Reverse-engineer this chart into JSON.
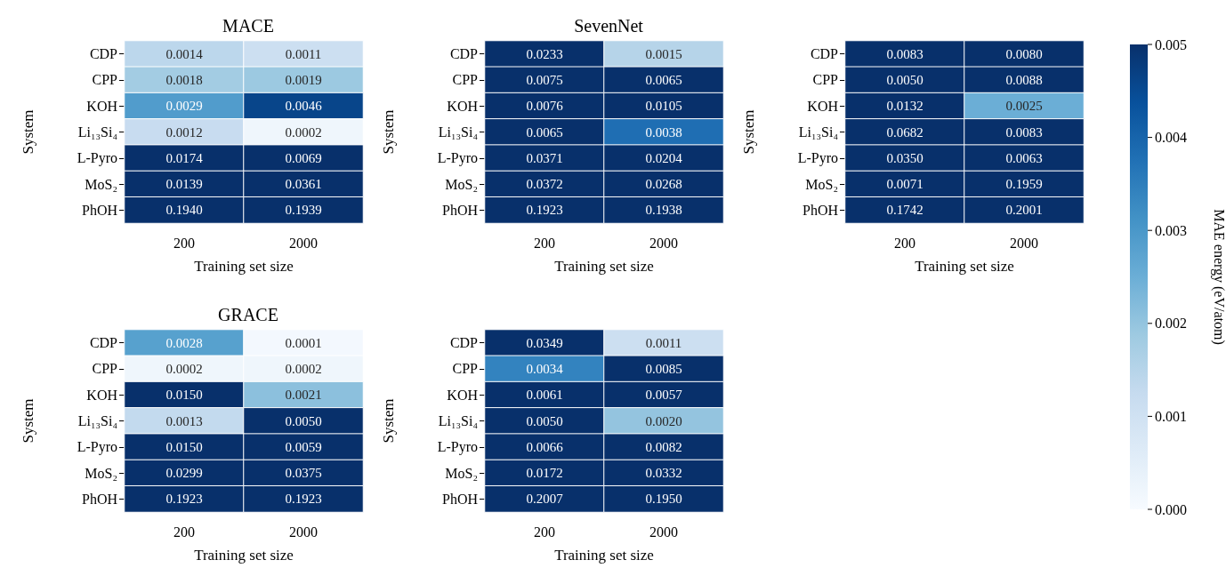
{
  "chart_data": [
    {
      "type": "heatmap",
      "title": "MACE",
      "xlabel": "Training set size",
      "ylabel": "System",
      "categories": [
        "200",
        "2000"
      ],
      "y_categories": [
        "CDP",
        "CPP",
        "KOH",
        "Li₁₃Si₄",
        "L-Pyro",
        "MoS₂",
        "PhOH"
      ],
      "cells": [
        [
          0.0014,
          0.0011
        ],
        [
          0.0018,
          0.0019
        ],
        [
          0.0029,
          0.0046
        ],
        [
          0.0012,
          0.0002
        ],
        [
          0.0174,
          0.0069
        ],
        [
          0.0139,
          0.0361
        ],
        [
          0.194,
          0.1939
        ]
      ],
      "cell_labels": [
        [
          "0.0014",
          "0.0011"
        ],
        [
          "0.0018",
          "0.0019"
        ],
        [
          "0.0029",
          "0.0046"
        ],
        [
          "0.0012",
          "0.0002"
        ],
        [
          "0.0174",
          "0.0069"
        ],
        [
          "0.0139",
          "0.0361"
        ],
        [
          "0.1940",
          "0.1939"
        ]
      ],
      "data_labels": true
    },
    {
      "type": "heatmap",
      "title": "SevenNet",
      "xlabel": "Training set size",
      "ylabel": "System",
      "categories": [
        "200",
        "2000"
      ],
      "y_categories": [
        "CDP",
        "CPP",
        "KOH",
        "Li₁₃Si₄",
        "L-Pyro",
        "MoS₂",
        "PhOH"
      ],
      "cells": [
        [
          0.0233,
          0.0015
        ],
        [
          0.0075,
          0.0065
        ],
        [
          0.0076,
          0.0105
        ],
        [
          0.0065,
          0.0038
        ],
        [
          0.0371,
          0.0204
        ],
        [
          0.0372,
          0.0268
        ],
        [
          0.1923,
          0.1938
        ]
      ],
      "cell_labels": [
        [
          "0.0233",
          "0.0015"
        ],
        [
          "0.0075",
          "0.0065"
        ],
        [
          "0.0076",
          "0.0105"
        ],
        [
          "0.0065",
          "0.0038"
        ],
        [
          "0.0371",
          "0.0204"
        ],
        [
          "0.0372",
          "0.0268"
        ],
        [
          "0.1923",
          "0.1938"
        ]
      ],
      "data_labels": true
    },
    {
      "type": "heatmap",
      "xlabel": "Training set size",
      "ylabel": "System",
      "categories": [
        "200",
        "2000"
      ],
      "y_categories": [
        "CDP",
        "CPP",
        "KOH",
        "Li₁₃Si₄",
        "L-Pyro",
        "MoS₂",
        "PhOH"
      ],
      "cells": [
        [
          0.0083,
          0.008
        ],
        [
          0.005,
          0.0088
        ],
        [
          0.0132,
          0.0025
        ],
        [
          0.0682,
          0.0083
        ],
        [
          0.035,
          0.0063
        ],
        [
          0.0071,
          0.1959
        ],
        [
          0.1742,
          0.2001
        ]
      ],
      "cell_labels": [
        [
          "0.0083",
          "0.0080"
        ],
        [
          "0.0050",
          "0.0088"
        ],
        [
          "0.0132",
          "0.0025"
        ],
        [
          "0.0682",
          "0.0083"
        ],
        [
          "0.0350",
          "0.0063"
        ],
        [
          "0.0071",
          "0.1959"
        ],
        [
          "0.1742",
          "0.2001"
        ]
      ],
      "clim": [
        0,
        0.005
      ],
      "cticks": [
        {
          "value": 0,
          "label": "0.000"
        },
        {
          "value": 0.001,
          "label": "0.001"
        },
        {
          "value": 0.002,
          "label": "0.002"
        },
        {
          "value": 0.003,
          "label": "0.003"
        },
        {
          "value": 0.004,
          "label": "0.004"
        },
        {
          "value": 0.005,
          "label": "0.005"
        }
      ],
      "clabel": "MAE energy (eV/atom)",
      "data_labels": true
    },
    {
      "type": "heatmap",
      "title": "GRACE",
      "xlabel": "Training set size",
      "ylabel": "System",
      "categories": [
        "200",
        "2000"
      ],
      "y_categories": [
        "CDP",
        "CPP",
        "KOH",
        "Li₁₃Si₄",
        "L-Pyro",
        "MoS₂",
        "PhOH"
      ],
      "cells": [
        [
          0.0028,
          0.0001
        ],
        [
          0.0002,
          0.0002
        ],
        [
          0.015,
          0.0021
        ],
        [
          0.0013,
          0.005
        ],
        [
          0.015,
          0.0059
        ],
        [
          0.0299,
          0.0375
        ],
        [
          0.1923,
          0.1923
        ]
      ],
      "cell_labels": [
        [
          "0.0028",
          "0.0001"
        ],
        [
          "0.0002",
          "0.0002"
        ],
        [
          "0.0150",
          "0.0021"
        ],
        [
          "0.0013",
          "0.0050"
        ],
        [
          "0.0150",
          "0.0059"
        ],
        [
          "0.0299",
          "0.0375"
        ],
        [
          "0.1923",
          "0.1923"
        ]
      ],
      "data_labels": true
    },
    {
      "type": "heatmap",
      "xlabel": "Training set size",
      "ylabel": "System",
      "categories": [
        "200",
        "2000"
      ],
      "y_categories": [
        "CDP",
        "CPP",
        "KOH",
        "Li₁₃Si₄",
        "L-Pyro",
        "MoS₂",
        "PhOH"
      ],
      "cells": [
        [
          0.0349,
          0.0011
        ],
        [
          0.0034,
          0.0085
        ],
        [
          0.0061,
          0.0057
        ],
        [
          0.005,
          0.002
        ],
        [
          0.0066,
          0.0082
        ],
        [
          0.0172,
          0.0332
        ],
        [
          0.2007,
          0.195
        ]
      ],
      "cell_labels": [
        [
          "0.0349",
          "0.0011"
        ],
        [
          "0.0034",
          "0.0085"
        ],
        [
          "0.0061",
          "0.0057"
        ],
        [
          "0.0050",
          "0.0020"
        ],
        [
          "0.0066",
          "0.0082"
        ],
        [
          "0.0172",
          "0.0332"
        ],
        [
          "0.2007",
          "0.1950"
        ]
      ],
      "data_labels": true
    }
  ]
}
